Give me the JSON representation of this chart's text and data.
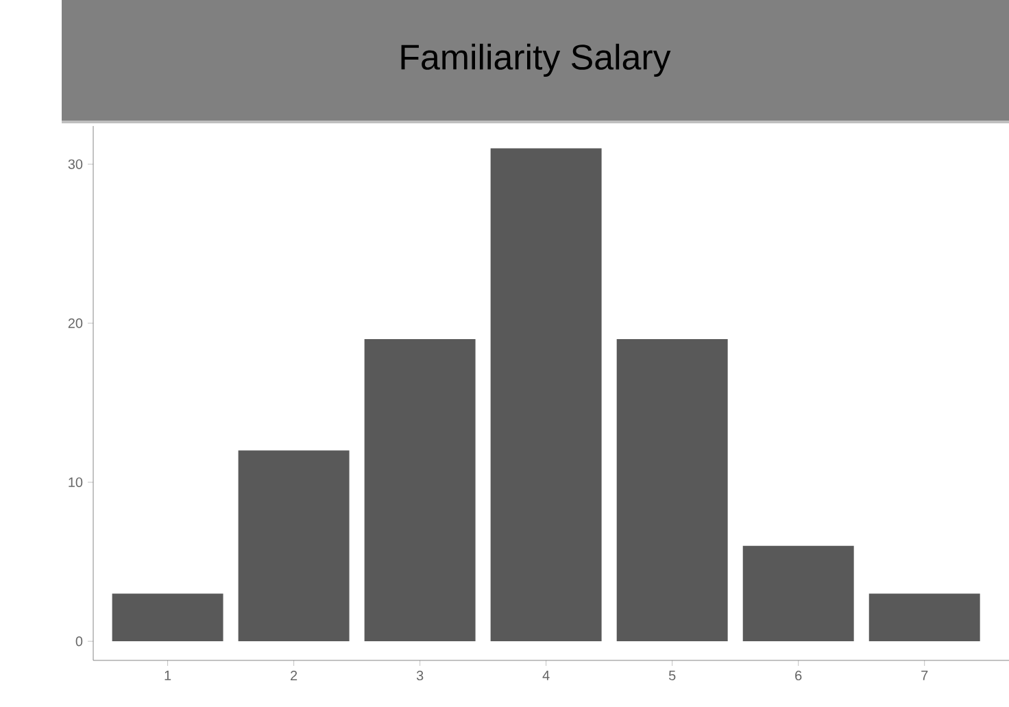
{
  "chart_data": {
    "type": "bar",
    "title": "Familiarity Salary",
    "categories": [
      "1",
      "2",
      "3",
      "4",
      "5",
      "6",
      "7"
    ],
    "values": [
      3,
      12,
      19,
      31,
      19,
      6,
      3
    ],
    "color": "#595959",
    "ylim": [
      -1.2,
      32.4
    ],
    "yticks": [
      0,
      10,
      20,
      30
    ],
    "grid": false
  }
}
